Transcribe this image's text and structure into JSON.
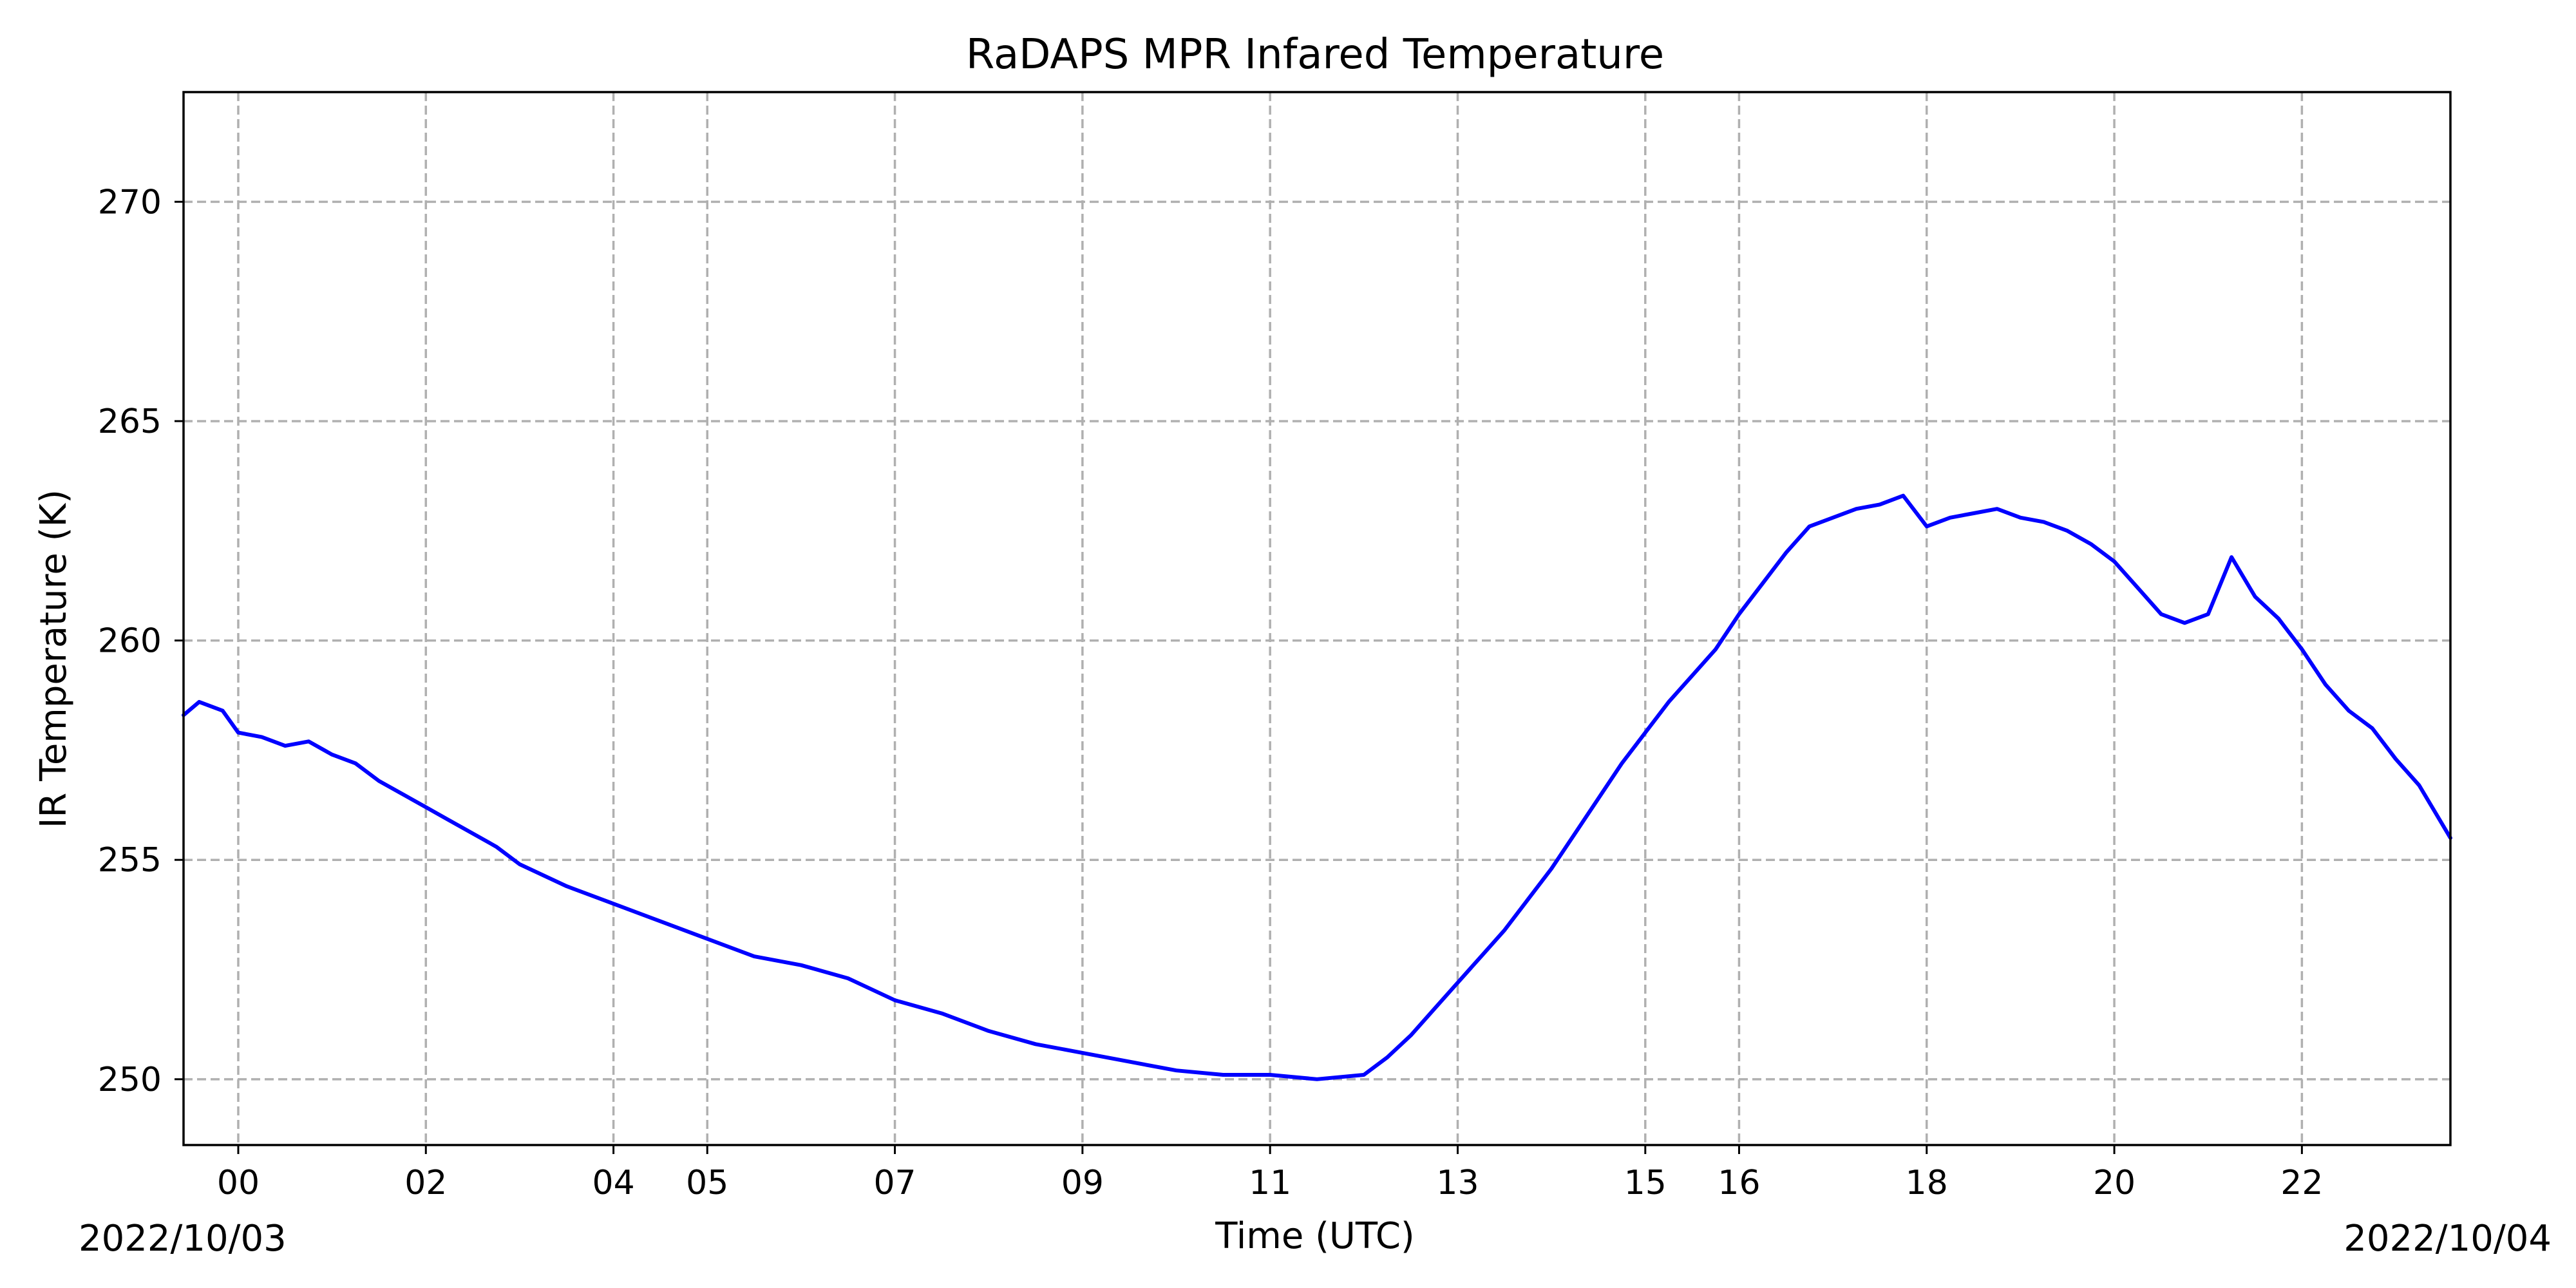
{
  "chart_data": {
    "type": "line",
    "title": "RaDAPS MPR Infared Temperature",
    "xlabel": "Time (UTC)",
    "ylabel": "IR Temperature (K)",
    "x_axis": {
      "start_label": "2022/10/03",
      "end_label": "2022/10/04",
      "range": [
        "2022-10-02T23:25",
        "2022-10-03T23:35"
      ],
      "tick_labels": [
        "00",
        "02",
        "04",
        "05",
        "07",
        "09",
        "11",
        "13",
        "15",
        "16",
        "18",
        "20",
        "22"
      ],
      "tick_positions": [
        "2022-10-03T00:00",
        "2022-10-03T02:00",
        "2022-10-03T04:00",
        "2022-10-03T05:00",
        "2022-10-03T07:00",
        "2022-10-03T09:00",
        "2022-10-03T11:00",
        "2022-10-03T13:00",
        "2022-10-03T15:00",
        "2022-10-03T16:00",
        "2022-10-03T18:00",
        "2022-10-03T20:00",
        "2022-10-03T22:00"
      ]
    },
    "y_axis": {
      "range": [
        248.5,
        272.5
      ],
      "tick_values": [
        250,
        255,
        260,
        265,
        270
      ],
      "tick_labels": [
        "250",
        "255",
        "260",
        "265",
        "270"
      ]
    },
    "grid": true,
    "legend": "none",
    "series": [
      {
        "color": "#0000ff",
        "x": [
          "2022-10-02T23:25",
          "2022-10-02T23:35",
          "2022-10-02T23:50",
          "2022-10-03T00:00",
          "2022-10-03T00:15",
          "2022-10-03T00:30",
          "2022-10-03T00:45",
          "2022-10-03T01:00",
          "2022-10-03T01:15",
          "2022-10-03T01:30",
          "2022-10-03T01:45",
          "2022-10-03T02:00",
          "2022-10-03T02:15",
          "2022-10-03T02:30",
          "2022-10-03T02:45",
          "2022-10-03T03:00",
          "2022-10-03T03:30",
          "2022-10-03T04:00",
          "2022-10-03T04:30",
          "2022-10-03T05:00",
          "2022-10-03T05:30",
          "2022-10-03T06:00",
          "2022-10-03T06:30",
          "2022-10-03T07:00",
          "2022-10-03T07:30",
          "2022-10-03T08:00",
          "2022-10-03T08:30",
          "2022-10-03T09:00",
          "2022-10-03T09:30",
          "2022-10-03T10:00",
          "2022-10-03T10:30",
          "2022-10-03T11:00",
          "2022-10-03T11:30",
          "2022-10-03T12:00",
          "2022-10-03T12:15",
          "2022-10-03T12:30",
          "2022-10-03T12:45",
          "2022-10-03T13:00",
          "2022-10-03T13:15",
          "2022-10-03T13:30",
          "2022-10-03T13:45",
          "2022-10-03T14:00",
          "2022-10-03T14:15",
          "2022-10-03T14:30",
          "2022-10-03T14:45",
          "2022-10-03T15:00",
          "2022-10-03T15:15",
          "2022-10-03T15:30",
          "2022-10-03T15:45",
          "2022-10-03T16:00",
          "2022-10-03T16:15",
          "2022-10-03T16:30",
          "2022-10-03T16:45",
          "2022-10-03T17:00",
          "2022-10-03T17:15",
          "2022-10-03T17:30",
          "2022-10-03T17:45",
          "2022-10-03T18:00",
          "2022-10-03T18:15",
          "2022-10-03T18:30",
          "2022-10-03T18:45",
          "2022-10-03T19:00",
          "2022-10-03T19:15",
          "2022-10-03T19:30",
          "2022-10-03T19:45",
          "2022-10-03T20:00",
          "2022-10-03T20:15",
          "2022-10-03T20:30",
          "2022-10-03T20:45",
          "2022-10-03T21:00",
          "2022-10-03T21:15",
          "2022-10-03T21:30",
          "2022-10-03T21:45",
          "2022-10-03T22:00",
          "2022-10-03T22:15",
          "2022-10-03T22:30",
          "2022-10-03T22:45",
          "2022-10-03T23:00",
          "2022-10-03T23:15",
          "2022-10-03T23:35"
        ],
        "y": [
          258.3,
          258.6,
          258.4,
          257.9,
          257.8,
          257.6,
          257.7,
          257.4,
          257.2,
          256.8,
          256.5,
          256.2,
          255.9,
          255.6,
          255.3,
          254.9,
          254.4,
          254.0,
          253.6,
          253.2,
          252.8,
          252.6,
          252.3,
          251.8,
          251.5,
          251.1,
          250.8,
          250.6,
          250.4,
          250.2,
          250.1,
          250.1,
          250.0,
          250.1,
          250.5,
          251.0,
          251.6,
          252.2,
          252.8,
          253.4,
          254.1,
          254.8,
          255.6,
          256.4,
          257.2,
          257.9,
          258.6,
          259.2,
          259.8,
          260.6,
          261.3,
          262.0,
          262.6,
          262.8,
          263.0,
          263.1,
          263.3,
          262.6,
          262.8,
          262.9,
          263.0,
          262.8,
          262.7,
          262.5,
          262.2,
          261.8,
          261.2,
          260.6,
          260.4,
          260.6,
          261.9,
          261.0,
          260.5,
          259.8,
          259.0,
          258.4,
          258.0,
          257.3,
          256.7,
          255.5
        ]
      }
    ]
  }
}
